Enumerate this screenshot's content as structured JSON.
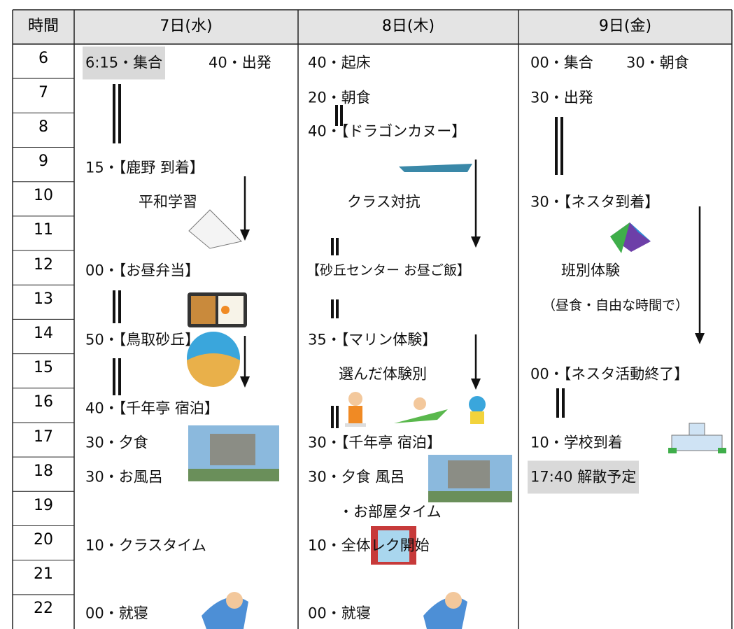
{
  "header": {
    "time": "時間",
    "days": [
      "7日(水)",
      "8日(木)",
      "9日(金)"
    ]
  },
  "hours": [
    "6",
    "7",
    "8",
    "9",
    "10",
    "11",
    "12",
    "13",
    "14",
    "15",
    "16",
    "17",
    "18",
    "19",
    "20",
    "21",
    "22"
  ],
  "days": [
    {
      "entries": [
        "6:15・集合",
        "40・出発",
        "15・【鹿野 到着】",
        "平和学習",
        "00・【お昼弁当】",
        "50・【鳥取砂丘】",
        "40・【千年亭 宿泊】",
        "30・夕食",
        "30・お風呂",
        "10・クラスタイム",
        "00・就寝"
      ]
    },
    {
      "entries": [
        "40・起床",
        "20・朝食",
        "40・【ドラゴンカヌー】",
        "クラス対抗",
        "【砂丘センター お昼ご飯】",
        "35・【マリン体験】",
        "選んだ体験別",
        "30・【千年亭 宿泊】",
        "30・夕食 風呂",
        "・お部屋タイム",
        "10・全体レク開始",
        "00・就寝"
      ]
    },
    {
      "entries": [
        "00・集合",
        "30・朝食",
        "30・出発",
        "30・【ネスタ到着】",
        "班別体験",
        "（昼食・自由な時間で）",
        "00・【ネスタ活動終了】",
        "10・学校到着",
        "17:40 解散予定"
      ]
    }
  ]
}
